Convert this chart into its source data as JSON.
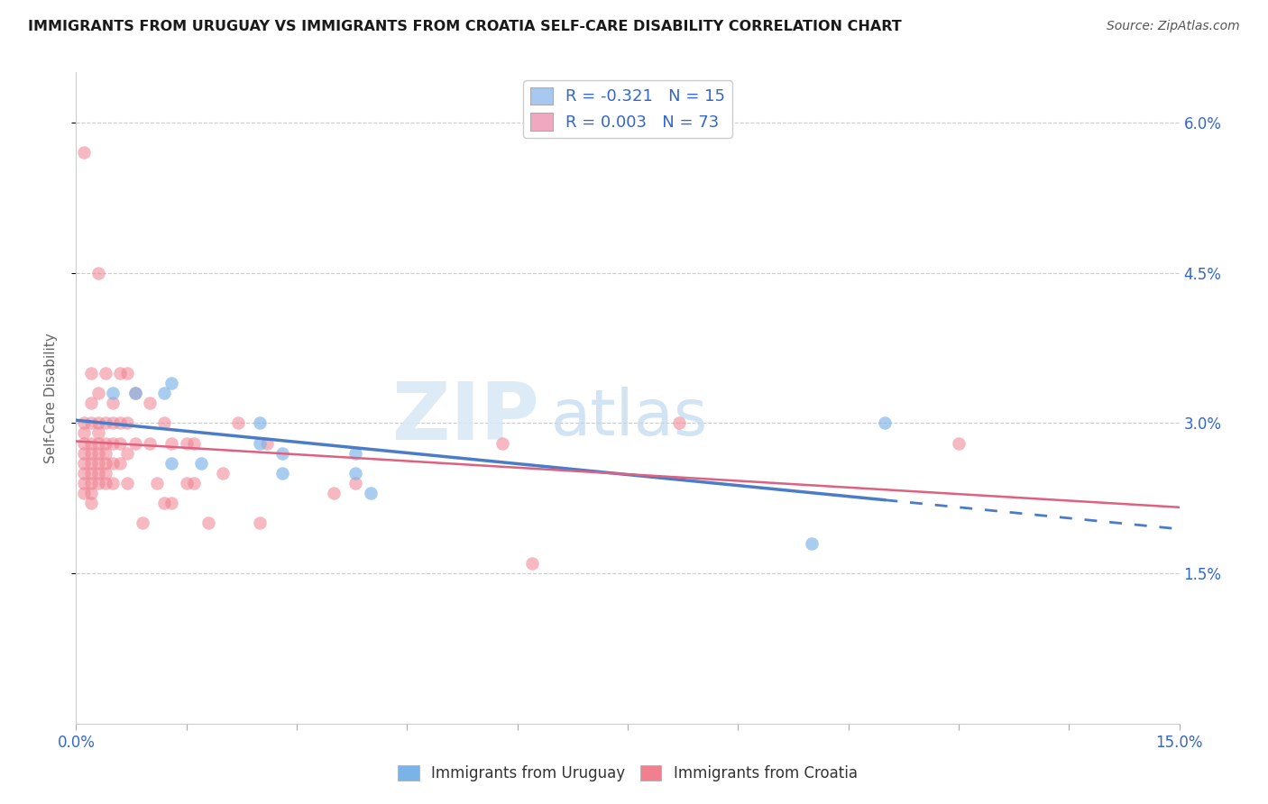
{
  "title": "IMMIGRANTS FROM URUGUAY VS IMMIGRANTS FROM CROATIA SELF-CARE DISABILITY CORRELATION CHART",
  "source": "Source: ZipAtlas.com",
  "ylabel": "Self-Care Disability",
  "xlim": [
    0.0,
    0.15
  ],
  "ylim": [
    0.0,
    0.065
  ],
  "xticks": [
    0.0,
    0.015,
    0.03,
    0.045,
    0.06,
    0.075,
    0.09,
    0.105,
    0.12,
    0.135,
    0.15
  ],
  "yticks": [
    0.015,
    0.03,
    0.045,
    0.06
  ],
  "ytick_labels": [
    "1.5%",
    "3.0%",
    "4.5%",
    "6.0%"
  ],
  "xtick_label_left": "0.0%",
  "xtick_label_right": "15.0%",
  "legend_entries": [
    {
      "label": "R = -0.321   N = 15",
      "color": "#a8c8f0"
    },
    {
      "label": "R = 0.003   N = 73",
      "color": "#f0a8c0"
    }
  ],
  "uruguay_color": "#7ab3e8",
  "croatia_color": "#f08090",
  "trendline_uruguay_color": "#4a7cc7",
  "trendline_croatia_color": "#e06080",
  "watermark_zip": "ZIP",
  "watermark_atlas": "atlas",
  "legend_label_uru": "Immigrants from Uruguay",
  "legend_label_cro": "Immigrants from Croatia",
  "uruguay_points": [
    [
      0.005,
      0.033
    ],
    [
      0.008,
      0.033
    ],
    [
      0.012,
      0.033
    ],
    [
      0.013,
      0.034
    ],
    [
      0.013,
      0.026
    ],
    [
      0.017,
      0.026
    ],
    [
      0.025,
      0.028
    ],
    [
      0.025,
      0.03
    ],
    [
      0.028,
      0.027
    ],
    [
      0.028,
      0.025
    ],
    [
      0.038,
      0.027
    ],
    [
      0.038,
      0.025
    ],
    [
      0.04,
      0.023
    ],
    [
      0.1,
      0.018
    ],
    [
      0.11,
      0.03
    ]
  ],
  "croatia_points": [
    [
      0.001,
      0.057
    ],
    [
      0.001,
      0.03
    ],
    [
      0.001,
      0.029
    ],
    [
      0.001,
      0.028
    ],
    [
      0.001,
      0.027
    ],
    [
      0.001,
      0.026
    ],
    [
      0.001,
      0.025
    ],
    [
      0.001,
      0.024
    ],
    [
      0.001,
      0.023
    ],
    [
      0.002,
      0.035
    ],
    [
      0.002,
      0.032
    ],
    [
      0.002,
      0.03
    ],
    [
      0.002,
      0.028
    ],
    [
      0.002,
      0.027
    ],
    [
      0.002,
      0.026
    ],
    [
      0.002,
      0.025
    ],
    [
      0.002,
      0.024
    ],
    [
      0.002,
      0.023
    ],
    [
      0.002,
      0.022
    ],
    [
      0.003,
      0.045
    ],
    [
      0.003,
      0.033
    ],
    [
      0.003,
      0.03
    ],
    [
      0.003,
      0.029
    ],
    [
      0.003,
      0.028
    ],
    [
      0.003,
      0.027
    ],
    [
      0.003,
      0.026
    ],
    [
      0.003,
      0.025
    ],
    [
      0.003,
      0.024
    ],
    [
      0.004,
      0.035
    ],
    [
      0.004,
      0.03
    ],
    [
      0.004,
      0.028
    ],
    [
      0.004,
      0.027
    ],
    [
      0.004,
      0.026
    ],
    [
      0.004,
      0.025
    ],
    [
      0.004,
      0.024
    ],
    [
      0.005,
      0.032
    ],
    [
      0.005,
      0.03
    ],
    [
      0.005,
      0.028
    ],
    [
      0.005,
      0.026
    ],
    [
      0.005,
      0.024
    ],
    [
      0.006,
      0.035
    ],
    [
      0.006,
      0.03
    ],
    [
      0.006,
      0.028
    ],
    [
      0.006,
      0.026
    ],
    [
      0.007,
      0.035
    ],
    [
      0.007,
      0.03
    ],
    [
      0.007,
      0.027
    ],
    [
      0.007,
      0.024
    ],
    [
      0.008,
      0.033
    ],
    [
      0.008,
      0.028
    ],
    [
      0.009,
      0.02
    ],
    [
      0.01,
      0.032
    ],
    [
      0.01,
      0.028
    ],
    [
      0.011,
      0.024
    ],
    [
      0.012,
      0.03
    ],
    [
      0.012,
      0.022
    ],
    [
      0.013,
      0.028
    ],
    [
      0.013,
      0.022
    ],
    [
      0.015,
      0.028
    ],
    [
      0.015,
      0.024
    ],
    [
      0.016,
      0.028
    ],
    [
      0.016,
      0.024
    ],
    [
      0.018,
      0.02
    ],
    [
      0.02,
      0.025
    ],
    [
      0.022,
      0.03
    ],
    [
      0.025,
      0.02
    ],
    [
      0.026,
      0.028
    ],
    [
      0.035,
      0.023
    ],
    [
      0.038,
      0.024
    ],
    [
      0.058,
      0.028
    ],
    [
      0.062,
      0.016
    ],
    [
      0.082,
      0.03
    ],
    [
      0.12,
      0.028
    ]
  ]
}
